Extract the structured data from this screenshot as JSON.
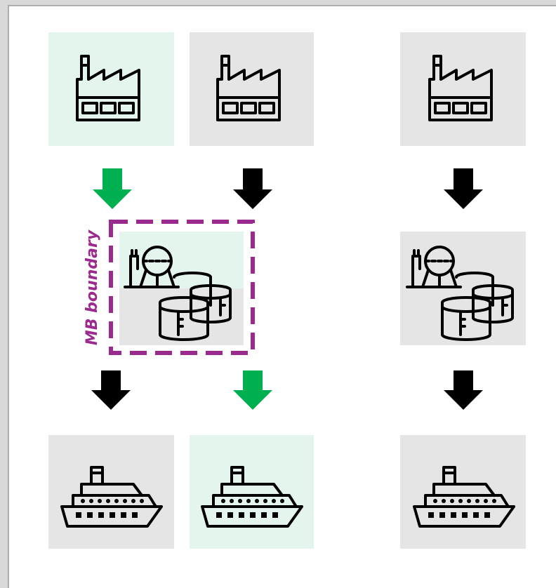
{
  "label": "MB boundary"
}
